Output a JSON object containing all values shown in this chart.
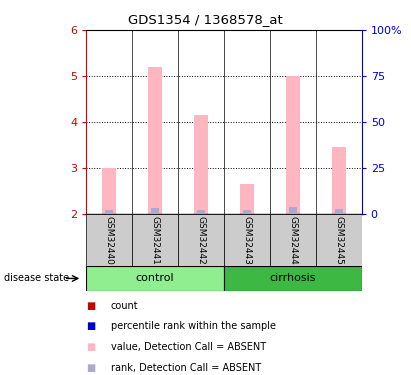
{
  "title": "GDS1354 / 1368578_at",
  "samples": [
    "GSM32440",
    "GSM32441",
    "GSM32442",
    "GSM32443",
    "GSM32444",
    "GSM32445"
  ],
  "bar_values": [
    3.0,
    5.2,
    4.15,
    2.65,
    5.0,
    3.45
  ],
  "rank_values": [
    2.08,
    2.12,
    2.08,
    2.08,
    2.15,
    2.1
  ],
  "bar_color": "#FFB6C1",
  "rank_color": "#AAAACC",
  "ylim_left": [
    2,
    6
  ],
  "yticks_left": [
    2,
    3,
    4,
    5,
    6
  ],
  "ylim_right": [
    0,
    100
  ],
  "yticks_right": [
    0,
    25,
    50,
    75,
    100
  ],
  "yticklabels_right": [
    "0",
    "25",
    "50",
    "75",
    "100%"
  ],
  "control_color": "#90EE90",
  "cirrhosis_color": "#3CB843",
  "left_axis_color": "#CC0000",
  "right_axis_color": "#0000CC",
  "bar_width": 0.3,
  "baseline": 2.0,
  "legend_items": [
    {
      "label": "count",
      "color": "#CC0000"
    },
    {
      "label": "percentile rank within the sample",
      "color": "#0000CC"
    },
    {
      "label": "value, Detection Call = ABSENT",
      "color": "#FFB6C1"
    },
    {
      "label": "rank, Detection Call = ABSENT",
      "color": "#AAAACC"
    }
  ]
}
